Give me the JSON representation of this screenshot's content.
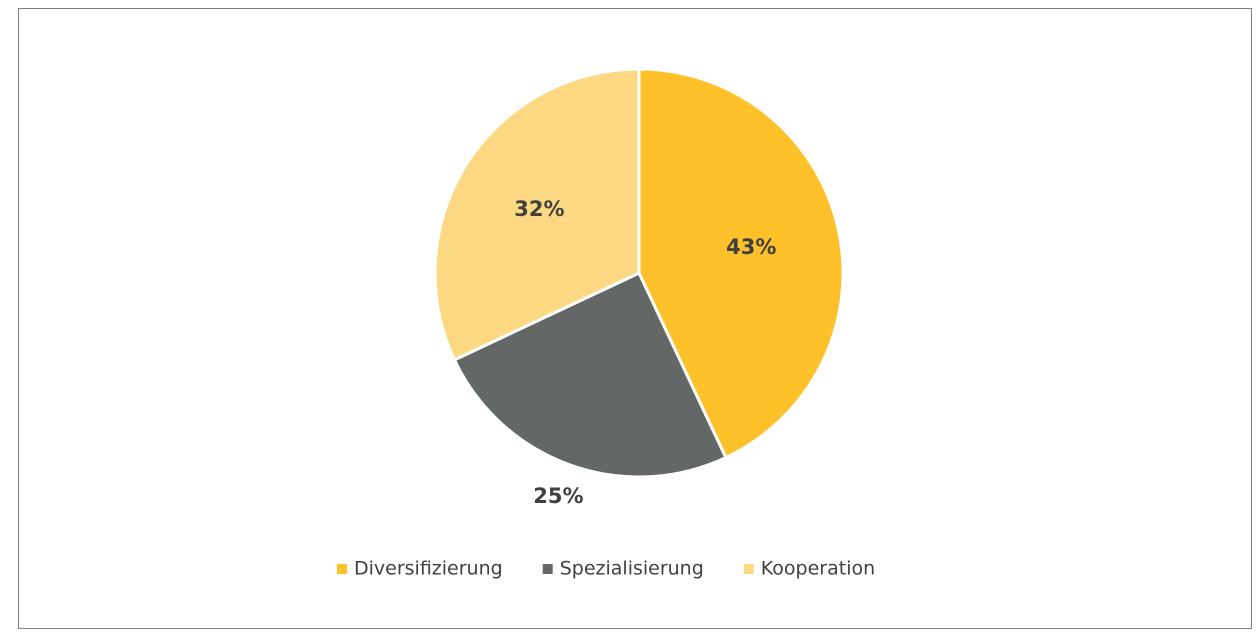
{
  "chart_data": {
    "type": "pie",
    "categories": [
      "Diversifizierung",
      "Spezialisierung",
      "Kooperation"
    ],
    "values": [
      43,
      25,
      32
    ],
    "value_labels": [
      "43%",
      "25%",
      "32%"
    ],
    "colors": [
      "#ffc12a",
      "#636866",
      "#fdd882"
    ],
    "legend": "bottom"
  }
}
